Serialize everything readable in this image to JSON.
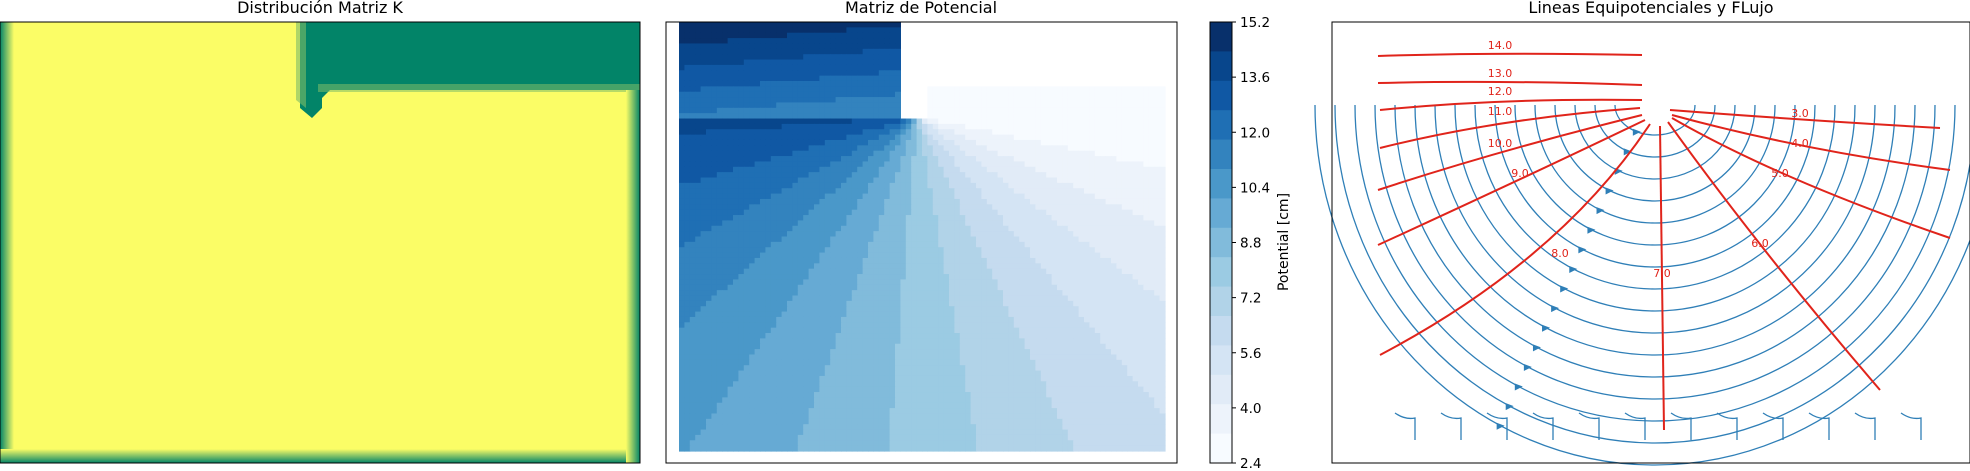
{
  "charts": [
    {
      "title": "Distribución Matriz K",
      "colors": {
        "high": "#fbfd66",
        "low": "#028468"
      }
    },
    {
      "title": "Matriz de Potencial"
    },
    {
      "title": "Lineas Equipotenciales y FLujo",
      "stream_color": "#2f7fb7",
      "contour_color": "#e0241b"
    }
  ],
  "colorbar": {
    "label": "Potential [cm]",
    "ticks": [
      "15.2",
      "13.6",
      "12.0",
      "10.4",
      "8.8",
      "7.2",
      "5.6",
      "4.0",
      "2.4"
    ],
    "colors": [
      "#08306b",
      "#08468c",
      "#1058a4",
      "#1f6fb4",
      "#3383be",
      "#4a98c9",
      "#66aad4",
      "#81bbdb",
      "#9bcbe3",
      "#b1d3e8",
      "#c5dbef",
      "#d4e4f4",
      "#e1ebf7",
      "#edf3fb",
      "#f7fbff"
    ]
  },
  "chart_data": [
    {
      "type": "heatmap",
      "title": "Distribución Matriz K",
      "values": "two-zone hydraulic conductivity field: high-K (yellow) bulk, low-K (green) strip above sheet-pile cut-off and around border",
      "grid": false
    },
    {
      "type": "heatmap",
      "title": "Matriz de Potencial",
      "colorbar_label": "Potential [cm]",
      "colorbar_range": [
        2.4,
        15.2
      ],
      "colorbar_ticks": [
        15.2,
        13.6,
        12.0,
        10.4,
        8.8,
        7.2,
        5.6,
        4.0,
        2.4
      ],
      "grid": false
    },
    {
      "type": "line",
      "title": "Lineas Equipotenciales y FLujo",
      "series": [
        {
          "name": "equipotentials",
          "values": [
            3.0,
            4.0,
            5.0,
            6.0,
            7.0,
            8.0,
            9.0,
            10.0,
            11.0,
            12.0,
            13.0,
            14.0
          ]
        }
      ],
      "contour_labels": [
        "3.0",
        "4.0",
        "5.0",
        "6.0",
        "7.0",
        "8.0",
        "9.0",
        "10.0",
        "11.0",
        "12.0",
        "13.0",
        "14.0"
      ],
      "grid": false
    }
  ]
}
